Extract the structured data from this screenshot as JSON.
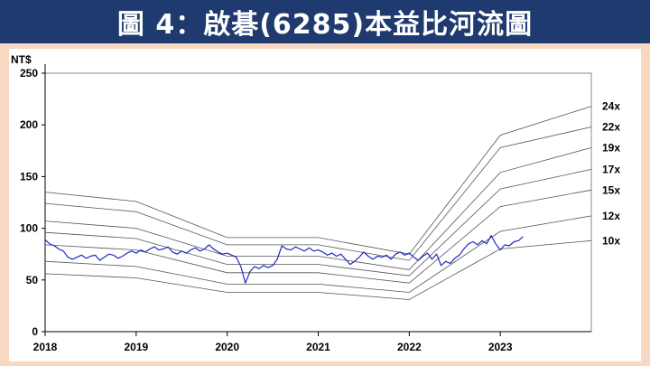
{
  "title": "圖 4：啟碁(6285)本益比河流圖",
  "chart_data": {
    "type": "line",
    "unit_label": "NT$",
    "y_range": [
      0,
      250
    ],
    "y_ticks": [
      "0",
      "50",
      "100",
      "150",
      "200",
      "250"
    ],
    "x_range": [
      2018,
      2024
    ],
    "x_ticks": [
      "2018",
      "2019",
      "2020",
      "2021",
      "2022",
      "2023"
    ],
    "bands": [
      {
        "name": "10x",
        "points": [
          [
            2018,
            56
          ],
          [
            2019,
            52
          ],
          [
            2020,
            38
          ],
          [
            2021,
            38
          ],
          [
            2022,
            31
          ],
          [
            2023,
            80
          ],
          [
            2024,
            88
          ]
        ]
      },
      {
        "name": "12x",
        "points": [
          [
            2018,
            68
          ],
          [
            2019,
            63
          ],
          [
            2020,
            46
          ],
          [
            2021,
            46
          ],
          [
            2022,
            38
          ],
          [
            2023,
            97
          ],
          [
            2024,
            112
          ]
        ]
      },
      {
        "name": "15x",
        "points": [
          [
            2018,
            84
          ],
          [
            2019,
            79
          ],
          [
            2020,
            57
          ],
          [
            2021,
            57
          ],
          [
            2022,
            47
          ],
          [
            2023,
            121
          ],
          [
            2024,
            137
          ]
        ]
      },
      {
        "name": "17x",
        "points": [
          [
            2018,
            96
          ],
          [
            2019,
            90
          ],
          [
            2020,
            65
          ],
          [
            2021,
            65
          ],
          [
            2022,
            54
          ],
          [
            2023,
            138
          ],
          [
            2024,
            157
          ]
        ]
      },
      {
        "name": "19x",
        "points": [
          [
            2018,
            107
          ],
          [
            2019,
            100
          ],
          [
            2020,
            73
          ],
          [
            2021,
            73
          ],
          [
            2022,
            60
          ],
          [
            2023,
            154
          ],
          [
            2024,
            178
          ]
        ]
      },
      {
        "name": "22x",
        "points": [
          [
            2018,
            124
          ],
          [
            2019,
            116
          ],
          [
            2020,
            84
          ],
          [
            2021,
            84
          ],
          [
            2022,
            69
          ],
          [
            2023,
            178
          ],
          [
            2024,
            198
          ]
        ]
      },
      {
        "name": "24x",
        "points": [
          [
            2018,
            135
          ],
          [
            2019,
            126
          ],
          [
            2020,
            91
          ],
          [
            2021,
            91
          ],
          [
            2022,
            75
          ],
          [
            2023,
            190
          ],
          [
            2024,
            218
          ]
        ]
      }
    ],
    "price_series": {
      "points": [
        [
          2018.0,
          89
        ],
        [
          2018.05,
          85
        ],
        [
          2018.1,
          83
        ],
        [
          2018.15,
          80
        ],
        [
          2018.2,
          78
        ],
        [
          2018.25,
          72
        ],
        [
          2018.3,
          70
        ],
        [
          2018.35,
          72
        ],
        [
          2018.4,
          74
        ],
        [
          2018.45,
          71
        ],
        [
          2018.5,
          73
        ],
        [
          2018.55,
          74
        ],
        [
          2018.6,
          69
        ],
        [
          2018.65,
          72
        ],
        [
          2018.7,
          75
        ],
        [
          2018.75,
          74
        ],
        [
          2018.8,
          71
        ],
        [
          2018.85,
          73
        ],
        [
          2018.9,
          76
        ],
        [
          2018.95,
          78
        ],
        [
          2019.0,
          76
        ],
        [
          2019.05,
          79
        ],
        [
          2019.1,
          77
        ],
        [
          2019.15,
          80
        ],
        [
          2019.2,
          82
        ],
        [
          2019.25,
          79
        ],
        [
          2019.3,
          80
        ],
        [
          2019.35,
          82
        ],
        [
          2019.4,
          77
        ],
        [
          2019.45,
          75
        ],
        [
          2019.5,
          78
        ],
        [
          2019.55,
          76
        ],
        [
          2019.6,
          79
        ],
        [
          2019.65,
          81
        ],
        [
          2019.7,
          78
        ],
        [
          2019.75,
          80
        ],
        [
          2019.8,
          84
        ],
        [
          2019.85,
          80
        ],
        [
          2019.9,
          77
        ],
        [
          2019.95,
          75
        ],
        [
          2020.0,
          76
        ],
        [
          2020.05,
          74
        ],
        [
          2020.1,
          72
        ],
        [
          2020.15,
          63
        ],
        [
          2020.2,
          47
        ],
        [
          2020.25,
          58
        ],
        [
          2020.3,
          63
        ],
        [
          2020.35,
          61
        ],
        [
          2020.4,
          64
        ],
        [
          2020.45,
          62
        ],
        [
          2020.5,
          64
        ],
        [
          2020.55,
          70
        ],
        [
          2020.6,
          83
        ],
        [
          2020.65,
          80
        ],
        [
          2020.7,
          79
        ],
        [
          2020.75,
          82
        ],
        [
          2020.8,
          80
        ],
        [
          2020.85,
          78
        ],
        [
          2020.9,
          81
        ],
        [
          2020.95,
          78
        ],
        [
          2021.0,
          79
        ],
        [
          2021.05,
          77
        ],
        [
          2021.1,
          74
        ],
        [
          2021.15,
          76
        ],
        [
          2021.2,
          73
        ],
        [
          2021.25,
          75
        ],
        [
          2021.3,
          70
        ],
        [
          2021.35,
          65
        ],
        [
          2021.4,
          68
        ],
        [
          2021.45,
          72
        ],
        [
          2021.5,
          77
        ],
        [
          2021.55,
          73
        ],
        [
          2021.6,
          70
        ],
        [
          2021.65,
          73
        ],
        [
          2021.7,
          72
        ],
        [
          2021.75,
          74
        ],
        [
          2021.8,
          70
        ],
        [
          2021.85,
          75
        ],
        [
          2021.9,
          77
        ],
        [
          2021.95,
          74
        ],
        [
          2022.0,
          76
        ],
        [
          2022.05,
          72
        ],
        [
          2022.1,
          69
        ],
        [
          2022.15,
          73
        ],
        [
          2022.2,
          76
        ],
        [
          2022.25,
          70
        ],
        [
          2022.3,
          75
        ],
        [
          2022.35,
          64
        ],
        [
          2022.4,
          68
        ],
        [
          2022.45,
          66
        ],
        [
          2022.5,
          71
        ],
        [
          2022.55,
          74
        ],
        [
          2022.6,
          80
        ],
        [
          2022.65,
          85
        ],
        [
          2022.7,
          87
        ],
        [
          2022.75,
          84
        ],
        [
          2022.8,
          88
        ],
        [
          2022.85,
          85
        ],
        [
          2022.9,
          93
        ],
        [
          2022.95,
          85
        ],
        [
          2023.0,
          79
        ],
        [
          2023.05,
          84
        ],
        [
          2023.1,
          83
        ],
        [
          2023.15,
          87
        ],
        [
          2023.2,
          88
        ],
        [
          2023.25,
          92
        ]
      ]
    },
    "colors": {
      "price": "#1f2bbf",
      "bands": "#555555",
      "axes": "#000000",
      "title_bg": "#1f3a6e",
      "frame_bg": "#f7d8c2"
    }
  }
}
